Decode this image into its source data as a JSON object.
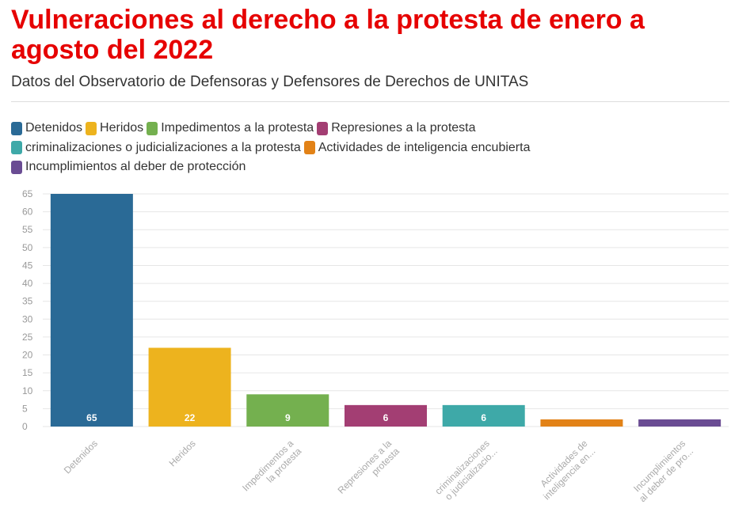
{
  "header": {
    "title": "Vulneraciones al derecho a la protesta de enero a agosto del 2022",
    "subtitle": "Datos del Observatorio de Defensoras y Defensores de Derechos de UNITAS"
  },
  "legend": {
    "rows": [
      [
        {
          "label": "Detenidos",
          "color": "#2a6a96"
        },
        {
          "label": "Heridos",
          "color": "#edb31e"
        },
        {
          "label": "Impedimentos a la protesta",
          "color": "#74b04f"
        },
        {
          "label": "Represiones a la protesta",
          "color": "#a33e73"
        }
      ],
      [
        {
          "label": "criminalizaciones o judicializaciones a la protesta",
          "color": "#3ea9a8"
        },
        {
          "label": "Actividades de inteligencia encubierta",
          "color": "#e28217"
        }
      ],
      [
        {
          "label": "Incumplimientos al deber de protección",
          "color": "#6a4c93"
        }
      ]
    ]
  },
  "chart_data": {
    "type": "bar",
    "categories": [
      "Detenidos",
      "Heridos",
      "Impedimentos a la protesta",
      "Represiones a la protesta",
      "criminalizaciones o judicializaciones a la protesta",
      "Actividades de inteligencia encubierta",
      "Incumplimientos al deber de protección"
    ],
    "tick_labels": [
      [
        "Detenidos"
      ],
      [
        "Heridos"
      ],
      [
        "Impedimentos a",
        "la protesta"
      ],
      [
        "Represiones a la",
        "protesta"
      ],
      [
        "criminalizaciones",
        "o judicializacio..."
      ],
      [
        "Actividades de",
        "inteligencia en..."
      ],
      [
        "Incumplimientos",
        "al deber de pro..."
      ]
    ],
    "values": [
      65,
      22,
      9,
      6,
      6,
      2,
      2
    ],
    "data_labels": [
      "65",
      "22",
      "9",
      "6",
      "6",
      "",
      ""
    ],
    "colors": [
      "#2a6a96",
      "#edb31e",
      "#74b04f",
      "#a33e73",
      "#3ea9a8",
      "#e28217",
      "#6a4c93"
    ],
    "ylim": [
      0,
      65
    ],
    "yticks": [
      0,
      5,
      10,
      15,
      20,
      25,
      30,
      35,
      40,
      45,
      50,
      55,
      60,
      65
    ],
    "grid": true,
    "legend_position": "top-left"
  }
}
